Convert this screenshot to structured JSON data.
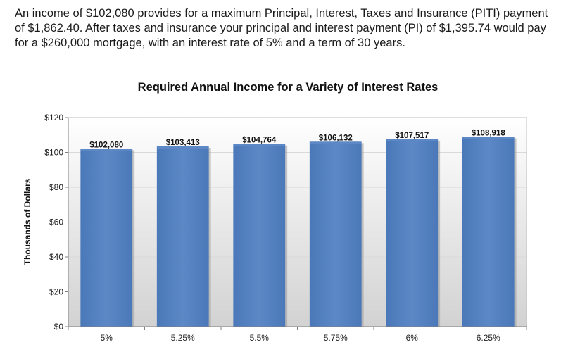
{
  "summary_text": "An income of $102,080 provides for a maximum Principal, Interest, Taxes and Insurance (PITI) payment of $1,862.40. After taxes and insurance your principal and interest payment (PI) of $1,395.74 would pay for a $260,000 mortgage, with an interest rate of 5% and a term of 30 years.",
  "colors": {
    "bar": "#4a78b8",
    "bar_top": "#5c88c6",
    "plot_bg_top": "#ffffff",
    "plot_bg_bottom": "#d2d2d2",
    "gridline": "#d9d9d9",
    "axis": "#808080"
  },
  "chart_data": {
    "type": "bar",
    "title": "Required Annual Income for a Variety of Interest Rates",
    "xlabel": "",
    "ylabel": "Thousands of Dollars",
    "categories": [
      "5%",
      "5.25%",
      "5.5%",
      "5.75%",
      "6%",
      "6.25%"
    ],
    "values": [
      102.08,
      103.413,
      104.764,
      106.132,
      107.517,
      108.918
    ],
    "data_labels": [
      "$102,080",
      "$103,413",
      "$104,764",
      "$106,132",
      "$107,517",
      "$108,918"
    ],
    "ylim": [
      0,
      120
    ],
    "yticks": [
      0,
      20,
      40,
      60,
      80,
      100,
      120
    ],
    "ytick_labels": [
      "$0",
      "$20",
      "$40",
      "$60",
      "$80",
      "$100",
      "$120"
    ],
    "grid": true,
    "legend": "none"
  }
}
